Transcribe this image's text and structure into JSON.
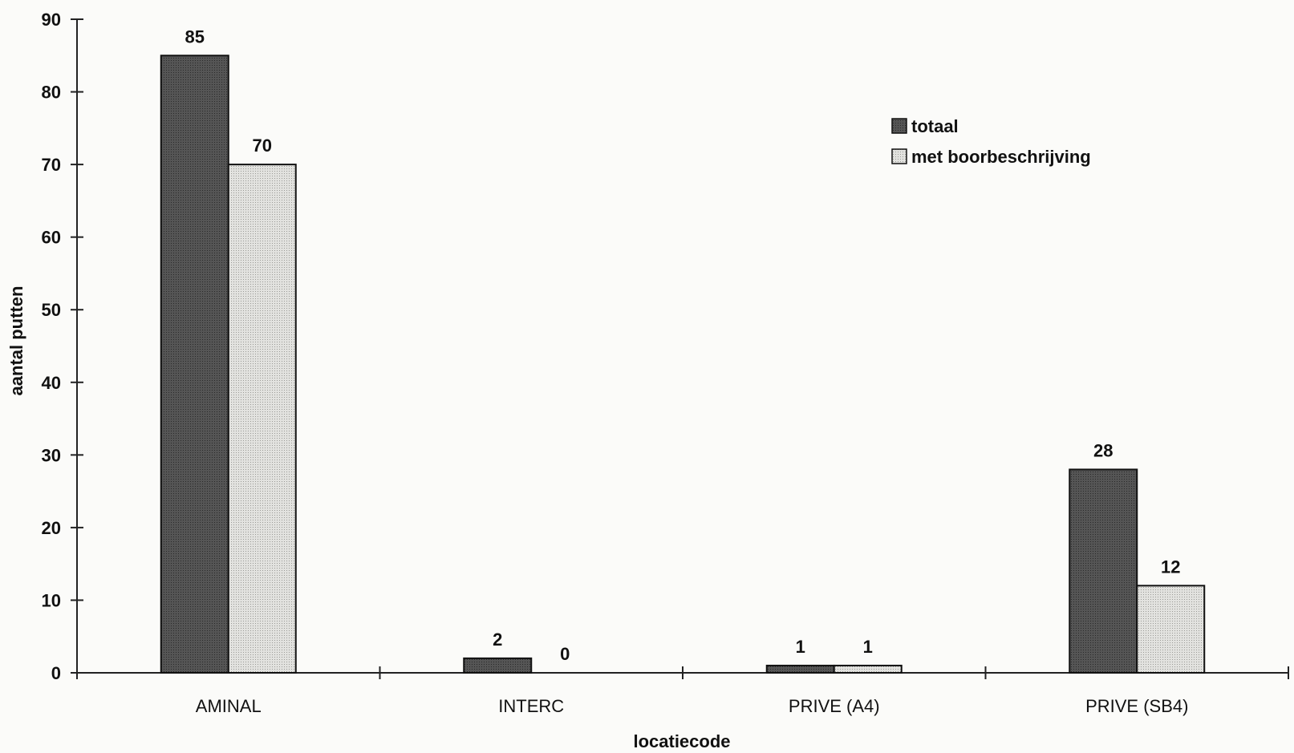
{
  "chart_data": {
    "type": "bar",
    "categories": [
      "AMINAL",
      "INTERC",
      "PRIVE (A4)",
      "PRIVE (SB4)"
    ],
    "series": [
      {
        "name": "totaal",
        "values": [
          85,
          2,
          1,
          28
        ],
        "color": "#4a4a4a"
      },
      {
        "name": "met boorbeschrijving",
        "values": [
          70,
          0,
          1,
          12
        ],
        "color": "#d9d9d6"
      }
    ],
    "xlabel": "locatiecode",
    "ylabel": "aantal putten",
    "ylim": [
      0,
      90
    ],
    "yticks": [
      0,
      10,
      20,
      30,
      40,
      50,
      60,
      70,
      80,
      90
    ],
    "legend_position": "top-right",
    "grid": false
  }
}
